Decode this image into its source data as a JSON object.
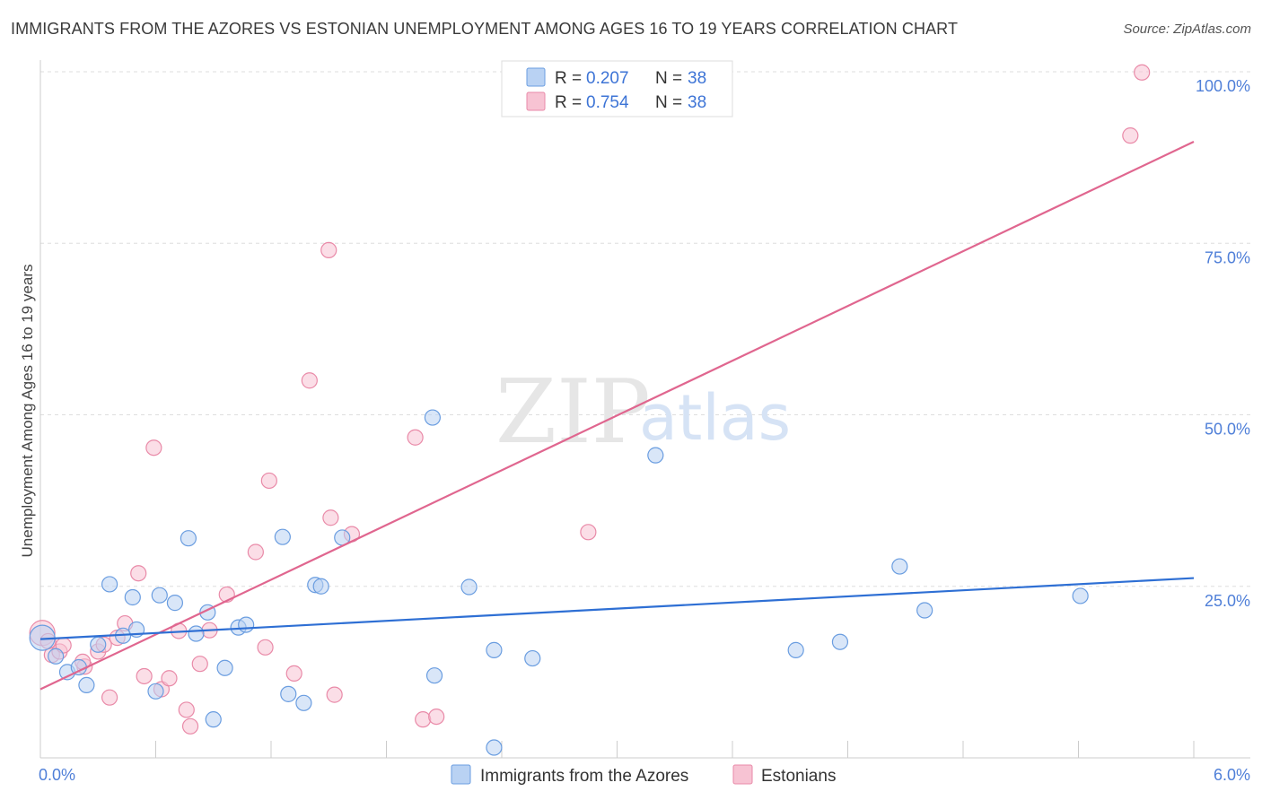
{
  "title": "IMMIGRANTS FROM THE AZORES VS ESTONIAN UNEMPLOYMENT AMONG AGES 16 TO 19 YEARS CORRELATION CHART",
  "source": "Source: ZipAtlas.com",
  "watermark": {
    "left": "ZIP",
    "right": "atlas"
  },
  "colors": {
    "blue_fill": "#b9d2f3",
    "blue_stroke": "#6a9de0",
    "blue_line": "#2e6fd4",
    "pink_fill": "#f7c3d3",
    "pink_stroke": "#e98aa8",
    "pink_line": "#e0668f",
    "tick": "#4f7fd8",
    "grid": "#dddddd"
  },
  "legend": {
    "rows": [
      {
        "r_label": "R = ",
        "r_value": "0.207",
        "n_label": "N = ",
        "n_value": "38",
        "series": "blue"
      },
      {
        "r_label": "R = ",
        "r_value": "0.754",
        "n_label": "N = ",
        "n_value": "38",
        "series": "pink"
      }
    ]
  },
  "chart_data": {
    "type": "scatter",
    "title": "IMMIGRANTS FROM THE AZORES VS ESTONIAN UNEMPLOYMENT AMONG AGES 16 TO 19 YEARS CORRELATION CHART",
    "xlabel": "",
    "ylabel": "Unemployment Among Ages 16 to 19 years",
    "xlim": [
      0,
      6.0
    ],
    "ylim": [
      0,
      100
    ],
    "x_tick_labels": [
      "0.0%",
      "6.0%"
    ],
    "y_ticks": [
      25,
      50,
      75,
      100
    ],
    "y_tick_labels": [
      "25.0%",
      "50.0%",
      "75.0%",
      "100.0%"
    ],
    "series": [
      {
        "name": "Immigrants from the Azores",
        "color": "blue",
        "trend": {
          "x0": 0,
          "y0": 17.3,
          "x1": 6.0,
          "y1": 26.2
        },
        "points": [
          [
            0.01,
            17.5
          ],
          [
            0.08,
            14.8
          ],
          [
            0.14,
            12.5
          ],
          [
            0.2,
            13.2
          ],
          [
            0.24,
            10.6
          ],
          [
            0.3,
            16.5
          ],
          [
            0.36,
            25.3
          ],
          [
            0.43,
            17.8
          ],
          [
            0.48,
            23.4
          ],
          [
            0.5,
            18.7
          ],
          [
            0.6,
            9.7
          ],
          [
            0.62,
            23.7
          ],
          [
            0.7,
            22.6
          ],
          [
            0.77,
            32.0
          ],
          [
            0.81,
            18.1
          ],
          [
            0.87,
            21.2
          ],
          [
            0.9,
            5.6
          ],
          [
            0.96,
            13.1
          ],
          [
            1.03,
            19.0
          ],
          [
            1.07,
            19.4
          ],
          [
            1.26,
            32.2
          ],
          [
            1.29,
            9.3
          ],
          [
            1.37,
            8.0
          ],
          [
            1.43,
            25.2
          ],
          [
            1.46,
            25.0
          ],
          [
            1.57,
            32.1
          ],
          [
            2.05,
            12.0
          ],
          [
            2.04,
            49.6
          ],
          [
            2.23,
            24.9
          ],
          [
            2.36,
            1.5
          ],
          [
            2.36,
            15.7
          ],
          [
            2.56,
            14.5
          ],
          [
            3.2,
            44.1
          ],
          [
            3.93,
            15.7
          ],
          [
            4.16,
            16.9
          ],
          [
            4.47,
            27.9
          ],
          [
            4.6,
            21.5
          ],
          [
            5.41,
            23.6
          ]
        ]
      },
      {
        "name": "Estonians",
        "color": "pink",
        "trend": {
          "x0": 0,
          "y0": 10.0,
          "x1": 6.0,
          "y1": 89.8
        },
        "points": [
          [
            0.01,
            18.2
          ],
          [
            0.06,
            15.0
          ],
          [
            0.1,
            15.5
          ],
          [
            0.12,
            16.4
          ],
          [
            0.23,
            13.3
          ],
          [
            0.3,
            15.5
          ],
          [
            0.33,
            16.5
          ],
          [
            0.36,
            8.8
          ],
          [
            0.4,
            17.5
          ],
          [
            0.44,
            19.6
          ],
          [
            0.51,
            26.9
          ],
          [
            0.54,
            11.9
          ],
          [
            0.59,
            45.2
          ],
          [
            0.63,
            10.0
          ],
          [
            0.67,
            11.6
          ],
          [
            0.72,
            18.5
          ],
          [
            0.76,
            7.0
          ],
          [
            0.78,
            4.6
          ],
          [
            0.83,
            13.7
          ],
          [
            0.88,
            18.6
          ],
          [
            0.97,
            23.8
          ],
          [
            1.12,
            30.0
          ],
          [
            1.17,
            16.1
          ],
          [
            1.19,
            40.4
          ],
          [
            1.32,
            12.3
          ],
          [
            1.4,
            55.0
          ],
          [
            1.5,
            74.0
          ],
          [
            1.51,
            35.0
          ],
          [
            1.53,
            9.2
          ],
          [
            1.62,
            32.6
          ],
          [
            1.95,
            46.7
          ],
          [
            1.99,
            5.6
          ],
          [
            2.06,
            6.0
          ],
          [
            2.85,
            32.9
          ],
          [
            5.67,
            90.7
          ],
          [
            5.73,
            99.9
          ],
          [
            0.04,
            17.0
          ],
          [
            0.22,
            14.0
          ]
        ]
      }
    ],
    "legend_position": "top-center"
  }
}
